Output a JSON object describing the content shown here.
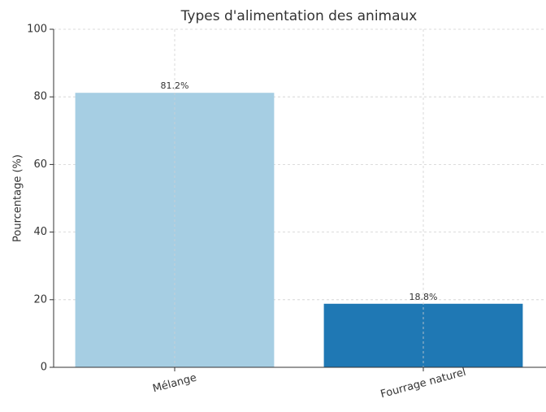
{
  "chart_data": {
    "type": "bar",
    "title": "Types d'alimentation des animaux",
    "y_label": "Pourcentage (%)",
    "categories": [
      "Mélange",
      "Fourrage naturel"
    ],
    "values": [
      81.2,
      18.8
    ],
    "value_labels": [
      "81.2%",
      "18.8%"
    ],
    "colors": [
      "#a6cee3",
      "#1f78b4"
    ],
    "ylim": [
      0,
      100
    ],
    "yticks": [
      0,
      20,
      40,
      60,
      80,
      100
    ],
    "grid": true
  }
}
